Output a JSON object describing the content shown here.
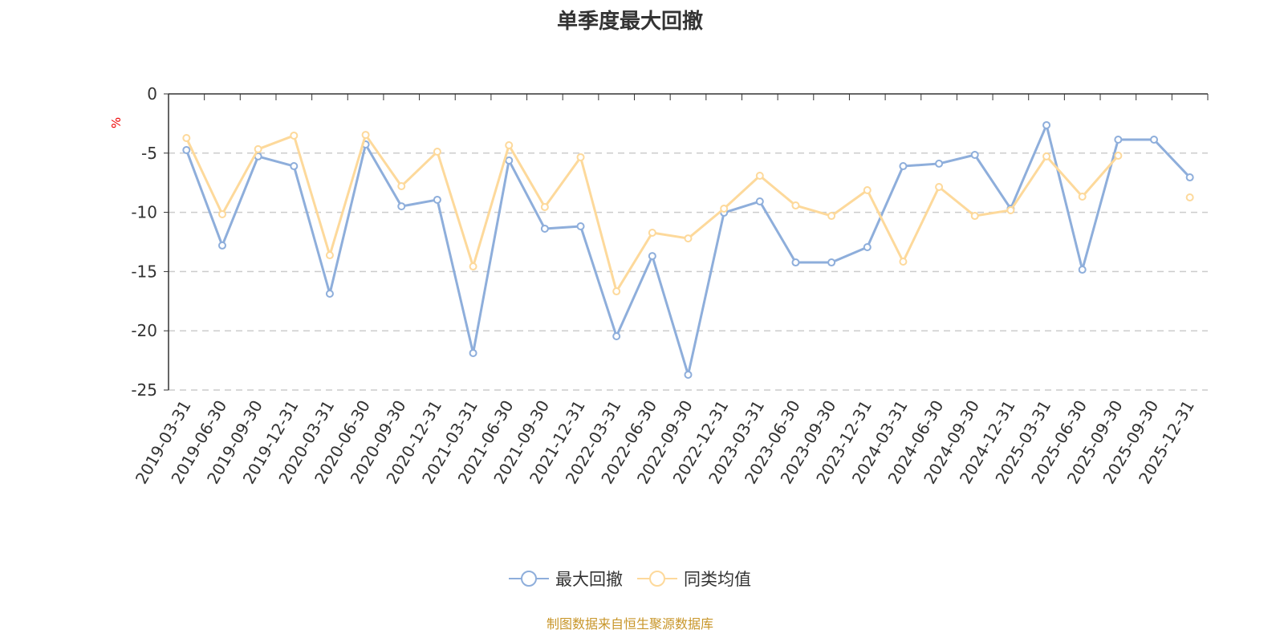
{
  "chart_data": {
    "type": "line",
    "title": "单季度最大回撤",
    "ylabel": "%",
    "xlabel": "",
    "ylim": [
      -25,
      0
    ],
    "yticks": [
      0,
      -5,
      -10,
      -15,
      -20,
      -25
    ],
    "grid": true,
    "legend_position": "bottom-center",
    "categories": [
      "2019-03-31",
      "2019-06-30",
      "2019-09-30",
      "2019-12-31",
      "2020-03-31",
      "2020-06-30",
      "2020-09-30",
      "2020-12-31",
      "2021-03-31",
      "2021-06-30",
      "2021-09-30",
      "2021-12-31",
      "2022-03-31",
      "2022-06-30",
      "2022-09-30",
      "2022-12-31",
      "2023-03-31",
      "2023-06-30",
      "2023-09-30",
      "2023-12-31",
      "2024-03-31",
      "2024-06-30",
      "2024-09-30",
      "2024-12-31",
      "2025-03-31",
      "2025-06-30",
      "2025-09-30",
      "2025-09-30",
      "2025-12-31"
    ],
    "series": [
      {
        "name": "最大回撤",
        "color": "#8eaedb",
        "values": [
          -4.74,
          -12.8,
          -5.28,
          -6.1,
          -16.87,
          -4.27,
          -9.49,
          -8.94,
          -21.88,
          -5.62,
          -11.38,
          -11.18,
          -20.46,
          -13.69,
          -23.71,
          -10.03,
          -9.08,
          -14.23,
          -14.23,
          -12.94,
          -6.1,
          -5.89,
          -5.15,
          -9.69,
          -2.64,
          -14.84,
          -3.86,
          -3.86,
          -7.05
        ]
      },
      {
        "name": "同类均值",
        "color": "#fdd99b",
        "values": [
          -3.73,
          -10.16,
          -4.67,
          -3.52,
          -13.62,
          -3.46,
          -7.79,
          -4.88,
          -14.57,
          -4.34,
          -9.55,
          -5.35,
          -16.67,
          -11.72,
          -12.2,
          -9.69,
          -6.91,
          -9.42,
          -10.3,
          -8.13,
          -14.16,
          -7.86,
          -10.3,
          -9.82,
          -5.28,
          -8.67,
          -5.22,
          null,
          -8.74
        ]
      }
    ]
  },
  "source": "制图数据来自恒生聚源数据库"
}
